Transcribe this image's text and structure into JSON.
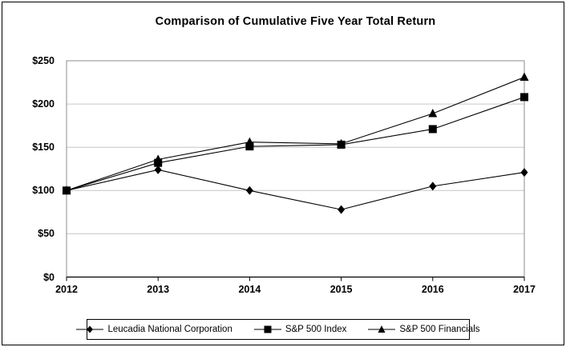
{
  "window": {
    "background": "#ffffff",
    "border_color": "#000000"
  },
  "chart_data": {
    "type": "line",
    "title": "Comparison of Cumulative Five Year Total Return",
    "categories": [
      "2012",
      "2013",
      "2014",
      "2015",
      "2016",
      "2017"
    ],
    "series": [
      {
        "name": "Leucadia National Corporation",
        "marker": "diamond",
        "color": "#000000",
        "values": [
          100,
          124,
          100,
          78,
          105,
          121
        ]
      },
      {
        "name": "S&P 500 Index",
        "marker": "square",
        "color": "#000000",
        "values": [
          100,
          132,
          151,
          153,
          171,
          208
        ]
      },
      {
        "name": "S&P 500 Financials",
        "marker": "triangle",
        "color": "#000000",
        "values": [
          100,
          136,
          156,
          154,
          189,
          231
        ]
      }
    ],
    "y_axis": {
      "min": 0,
      "max": 250,
      "step": 50,
      "tick_labels": [
        "$0",
        "$50",
        "$100",
        "$150",
        "$200",
        "$250"
      ],
      "format": "currency"
    },
    "grid": true,
    "grid_color": "#c6c6c6",
    "frame_color": "#8c8c8c",
    "axis_color": "#000000",
    "legend_position": "bottom"
  }
}
